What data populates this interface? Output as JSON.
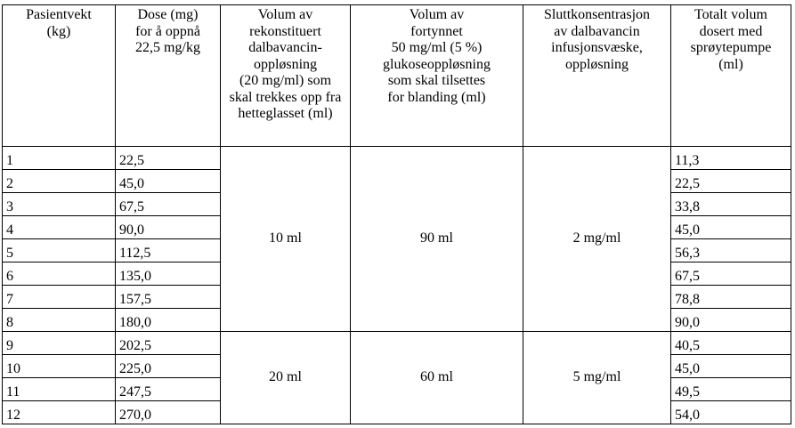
{
  "headers": [
    "Pasientvekt\n(kg)",
    "Dose (mg)\nfor å oppnå\n22,5 mg/kg",
    "Volum av\nrekonstituert\ndalbavancin-\noppløsning\n(20 mg/ml) som\nskal trekkes opp fra\nhetteglasset (ml)",
    "Volum av\nfortynnet\n50 mg/ml (5 %)\nglukoseoppløsning\nsom skal tilsettes\nfor blanding (ml)",
    "Sluttkonsentrasjon\nav dalbavancin\ninfusjonsvæske,\noppløsning",
    "Totalt volum\ndosert med\nsprøytepumpe\n(ml)"
  ],
  "rows": [
    {
      "weight": "1",
      "dose": "22,5",
      "total": "11,3"
    },
    {
      "weight": "2",
      "dose": "45,0",
      "total": "22,5"
    },
    {
      "weight": "3",
      "dose": "67,5",
      "total": "33,8"
    },
    {
      "weight": "4",
      "dose": "90,0",
      "total": "45,0"
    },
    {
      "weight": "5",
      "dose": "112,5",
      "total": "56,3"
    },
    {
      "weight": "6",
      "dose": "135,0",
      "total": "67,5"
    },
    {
      "weight": "7",
      "dose": "157,5",
      "total": "78,8"
    },
    {
      "weight": "8",
      "dose": "180,0",
      "total": "90,0"
    },
    {
      "weight": "9",
      "dose": "202,5",
      "total": "40,5"
    },
    {
      "weight": "10",
      "dose": "225,0",
      "total": "45,0"
    },
    {
      "weight": "11",
      "dose": "247,5",
      "total": "49,5"
    },
    {
      "weight": "12",
      "dose": "270,0",
      "total": "54,0"
    }
  ],
  "groups": [
    {
      "reconstituted": "10 ml",
      "glucose": "90 ml",
      "concentration": "2 mg/ml"
    },
    {
      "reconstituted": "20 ml",
      "glucose": "60 ml",
      "concentration": "5 mg/ml"
    }
  ]
}
